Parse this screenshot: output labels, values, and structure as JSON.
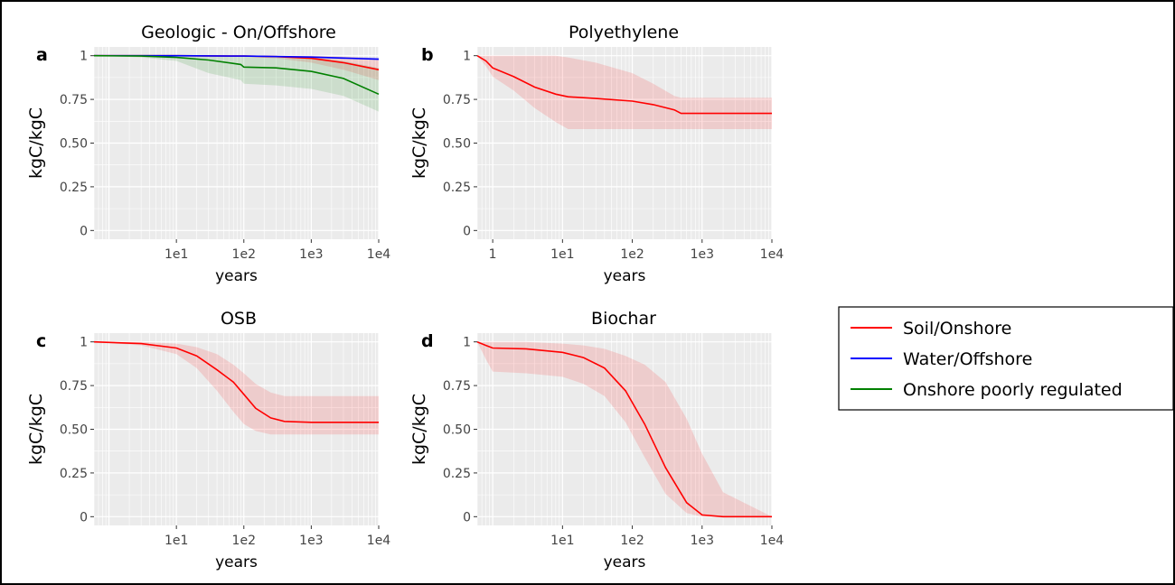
{
  "chart_data": [
    {
      "panel": "a",
      "type": "line",
      "title": "Geologic - On/Offshore",
      "xlabel": "years",
      "ylabel": "kgC/kgC",
      "xscale": "log",
      "xlim": [
        0.6,
        10000
      ],
      "ylim": [
        -0.05,
        1.05
      ],
      "xticks": [
        10,
        100,
        1000,
        10000
      ],
      "xticklabels": [
        "1e1",
        "1e2",
        "1e3",
        "1e4"
      ],
      "yticks": [
        0,
        0.25,
        0.5,
        0.75,
        1
      ],
      "yticklabels": [
        "0",
        "0.25",
        "0.50",
        "0.75",
        "1"
      ],
      "grid": true,
      "series": [
        {
          "name": "Soil/Onshore",
          "color": "#ff0000",
          "x": [
            0.6,
            10,
            100,
            300,
            1000,
            3000,
            10000
          ],
          "y": [
            1,
            1,
            0.998,
            0.995,
            0.985,
            0.96,
            0.92
          ],
          "lower": [
            1,
            1,
            0.995,
            0.985,
            0.96,
            0.92,
            0.86
          ],
          "upper": [
            1,
            1,
            1,
            1,
            1,
            0.995,
            0.985
          ]
        },
        {
          "name": "Water/Offshore",
          "color": "#0000ff",
          "x": [
            0.6,
            10,
            100,
            1000,
            10000
          ],
          "y": [
            1,
            1,
            0.998,
            0.992,
            0.98
          ],
          "lower": [
            1,
            1,
            0.996,
            0.988,
            0.975
          ],
          "upper": [
            1,
            1,
            1,
            0.996,
            0.99
          ]
        },
        {
          "name": "Onshore poorly regulated",
          "color": "#008000",
          "x": [
            0.6,
            3,
            10,
            30,
            90,
            100,
            300,
            1000,
            3000,
            10000
          ],
          "y": [
            1,
            0.998,
            0.99,
            0.975,
            0.95,
            0.935,
            0.93,
            0.91,
            0.87,
            0.78
          ],
          "lower": [
            1,
            0.99,
            0.97,
            0.9,
            0.86,
            0.84,
            0.83,
            0.81,
            0.77,
            0.68
          ],
          "upper": [
            1,
            1,
            1,
            1,
            1,
            1,
            0.995,
            0.99,
            0.97,
            0.93
          ]
        }
      ]
    },
    {
      "panel": "b",
      "type": "line",
      "title": "Polyethylene",
      "xlabel": "years",
      "ylabel": "kgC/kgC",
      "xscale": "log",
      "xlim": [
        0.6,
        10000
      ],
      "ylim": [
        -0.05,
        1.05
      ],
      "xticks": [
        1,
        10,
        100,
        1000,
        10000
      ],
      "xticklabels": [
        "1",
        "1e1",
        "1e2",
        "1e3",
        "1e4"
      ],
      "yticks": [
        0,
        0.25,
        0.5,
        0.75,
        1
      ],
      "yticklabels": [
        "0",
        "0.25",
        "0.50",
        "0.75",
        "1"
      ],
      "grid": true,
      "series": [
        {
          "name": "Soil/Onshore",
          "color": "#ff0000",
          "x": [
            0.6,
            0.8,
            1,
            2,
            4,
            8,
            12,
            30,
            100,
            200,
            400,
            500,
            1000,
            10000
          ],
          "y": [
            1,
            0.97,
            0.93,
            0.88,
            0.82,
            0.78,
            0.765,
            0.755,
            0.74,
            0.72,
            0.69,
            0.67,
            0.67,
            0.67
          ],
          "lower": [
            1,
            0.94,
            0.88,
            0.8,
            0.7,
            0.62,
            0.58,
            0.58,
            0.58,
            0.58,
            0.58,
            0.58,
            0.58,
            0.58
          ],
          "upper": [
            1,
            1,
            1,
            1,
            1,
            1,
            0.99,
            0.96,
            0.9,
            0.84,
            0.77,
            0.76,
            0.76,
            0.76
          ]
        }
      ]
    },
    {
      "panel": "c",
      "type": "line",
      "title": "OSB",
      "xlabel": "years",
      "ylabel": "kgC/kgC",
      "xscale": "log",
      "xlim": [
        0.6,
        10000
      ],
      "ylim": [
        -0.05,
        1.05
      ],
      "xticks": [
        10,
        100,
        1000,
        10000
      ],
      "xticklabels": [
        "1e1",
        "1e2",
        "1e3",
        "1e4"
      ],
      "yticks": [
        0,
        0.25,
        0.5,
        0.75,
        1
      ],
      "yticklabels": [
        "0",
        "0.25",
        "0.50",
        "0.75",
        "1"
      ],
      "grid": true,
      "series": [
        {
          "name": "Soil/Onshore",
          "color": "#ff0000",
          "x": [
            0.6,
            3,
            10,
            20,
            40,
            70,
            100,
            150,
            250,
            400,
            1000,
            10000
          ],
          "y": [
            1,
            0.99,
            0.965,
            0.92,
            0.84,
            0.77,
            0.7,
            0.62,
            0.565,
            0.545,
            0.54,
            0.54
          ],
          "lower": [
            1,
            0.98,
            0.93,
            0.85,
            0.72,
            0.6,
            0.53,
            0.49,
            0.47,
            0.47,
            0.47,
            0.47
          ],
          "upper": [
            1,
            1,
            0.99,
            0.97,
            0.93,
            0.87,
            0.82,
            0.76,
            0.71,
            0.69,
            0.69,
            0.69
          ]
        }
      ]
    },
    {
      "panel": "d",
      "type": "line",
      "title": "Biochar",
      "xlabel": "years",
      "ylabel": "kgC/kgC",
      "xscale": "log",
      "xlim": [
        0.6,
        10000
      ],
      "ylim": [
        -0.05,
        1.05
      ],
      "xticks": [
        10,
        100,
        1000,
        10000
      ],
      "xticklabels": [
        "1e1",
        "1e2",
        "1e3",
        "1e4"
      ],
      "yticks": [
        0,
        0.25,
        0.5,
        0.75,
        1
      ],
      "yticklabels": [
        "0",
        "0.25",
        "0.50",
        "0.75",
        "1"
      ],
      "grid": true,
      "series": [
        {
          "name": "Soil/Onshore",
          "color": "#ff0000",
          "x": [
            0.6,
            0.8,
            1,
            3,
            10,
            20,
            40,
            80,
            150,
            300,
            600,
            1000,
            2000,
            10000
          ],
          "y": [
            1,
            0.98,
            0.965,
            0.96,
            0.94,
            0.91,
            0.85,
            0.72,
            0.53,
            0.28,
            0.08,
            0.01,
            0,
            0
          ],
          "lower": [
            1,
            0.9,
            0.83,
            0.82,
            0.8,
            0.76,
            0.69,
            0.54,
            0.34,
            0.13,
            0.02,
            0,
            0,
            0
          ],
          "upper": [
            1,
            1,
            1,
            1,
            0.99,
            0.98,
            0.96,
            0.92,
            0.87,
            0.77,
            0.56,
            0.36,
            0.14,
            0
          ]
        }
      ]
    }
  ],
  "legend": {
    "placement": "right",
    "items": [
      {
        "label": "Soil/Onshore",
        "color": "#ff0000"
      },
      {
        "label": "Water/Offshore",
        "color": "#0000ff"
      },
      {
        "label": "Onshore poorly regulated",
        "color": "#008000"
      }
    ]
  }
}
